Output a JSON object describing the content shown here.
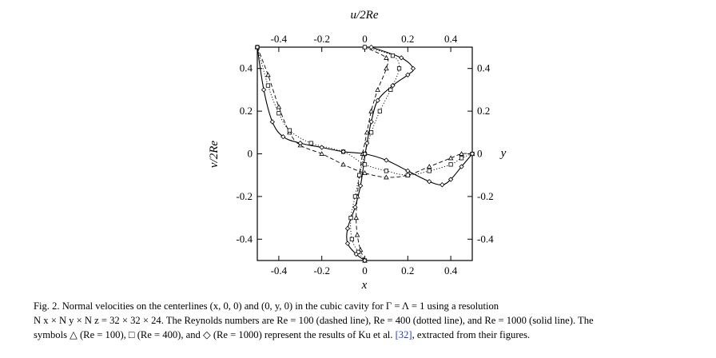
{
  "figure": {
    "chart_data": {
      "type": "line",
      "top_axis": {
        "label": "u/2Re",
        "ticks": [
          "-0.4",
          "-0.2",
          "0",
          "0.2",
          "0.4"
        ],
        "range": [
          -0.5,
          0.5
        ]
      },
      "bottom_axis": {
        "label": "x",
        "ticks": [
          "-0.4",
          "-0.2",
          "0",
          "0.2",
          "0.4"
        ],
        "range": [
          -0.5,
          0.5
        ]
      },
      "left_axis": {
        "label": "v/2Re",
        "ticks": [
          "0.4",
          "0.2",
          "0",
          "-0.2",
          "-0.4"
        ],
        "range": [
          -0.5,
          0.5
        ]
      },
      "right_axis": {
        "label": "y",
        "ticks": [
          "0.4",
          "0.2",
          "0",
          "-0.2",
          "-0.4"
        ],
        "range": [
          -0.5,
          0.5
        ]
      },
      "u_profiles": [
        {
          "style": "dashed",
          "marker": "triangle",
          "points": [
            [
              0,
              -0.5
            ],
            [
              -0.02,
              -0.45
            ],
            [
              -0.035,
              -0.38
            ],
            [
              -0.04,
              -0.3
            ],
            [
              -0.035,
              -0.2
            ],
            [
              -0.025,
              -0.1
            ],
            [
              -0.01,
              0
            ],
            [
              0.01,
              0.1
            ],
            [
              0.03,
              0.2
            ],
            [
              0.06,
              0.3
            ],
            [
              0.1,
              0.4
            ],
            [
              0.1,
              0.45
            ],
            [
              0,
              0.5
            ]
          ]
        },
        {
          "style": "dotted",
          "marker": "square",
          "points": [
            [
              0,
              -0.5
            ],
            [
              -0.03,
              -0.46
            ],
            [
              -0.06,
              -0.4
            ],
            [
              -0.065,
              -0.3
            ],
            [
              -0.045,
              -0.2
            ],
            [
              -0.025,
              -0.1
            ],
            [
              0,
              0
            ],
            [
              0.03,
              0.1
            ],
            [
              0.07,
              0.2
            ],
            [
              0.12,
              0.3
            ],
            [
              0.16,
              0.4
            ],
            [
              0.13,
              0.46
            ],
            [
              0,
              0.5
            ]
          ]
        },
        {
          "style": "solid",
          "marker": "diamond",
          "points": [
            [
              0,
              -0.5
            ],
            [
              -0.04,
              -0.47
            ],
            [
              -0.08,
              -0.42
            ],
            [
              -0.08,
              -0.35
            ],
            [
              -0.045,
              -0.25
            ],
            [
              -0.02,
              -0.15
            ],
            [
              -0.005,
              -0.05
            ],
            [
              0.01,
              0.05
            ],
            [
              0.03,
              0.15
            ],
            [
              0.06,
              0.25
            ],
            [
              0.13,
              0.32
            ],
            [
              0.2,
              0.37
            ],
            [
              0.225,
              0.4
            ],
            [
              0.17,
              0.45
            ],
            [
              0.03,
              0.5
            ]
          ]
        }
      ],
      "v_profiles": [
        {
          "style": "dashed",
          "marker": "triangle",
          "points": [
            [
              -0.5,
              0.5
            ],
            [
              -0.45,
              0.37
            ],
            [
              -0.4,
              0.22
            ],
            [
              -0.35,
              0.1
            ],
            [
              -0.3,
              0.04
            ],
            [
              -0.2,
              0
            ],
            [
              -0.1,
              -0.05
            ],
            [
              0,
              -0.09
            ],
            [
              0.1,
              -0.11
            ],
            [
              0.2,
              -0.1
            ],
            [
              0.3,
              -0.06
            ],
            [
              0.4,
              -0.02
            ],
            [
              0.45,
              0
            ],
            [
              0.5,
              0
            ]
          ]
        },
        {
          "style": "dotted",
          "marker": "square",
          "points": [
            [
              -0.5,
              0.5
            ],
            [
              -0.45,
              0.32
            ],
            [
              -0.4,
              0.19
            ],
            [
              -0.35,
              0.11
            ],
            [
              -0.25,
              0.05
            ],
            [
              -0.1,
              0.01
            ],
            [
              0,
              -0.05
            ],
            [
              0.1,
              -0.08
            ],
            [
              0.2,
              -0.1
            ],
            [
              0.3,
              -0.08
            ],
            [
              0.4,
              -0.05
            ],
            [
              0.45,
              -0.02
            ],
            [
              0.5,
              0
            ]
          ]
        },
        {
          "style": "solid",
          "marker": "diamond",
          "points": [
            [
              -0.5,
              0.5
            ],
            [
              -0.47,
              0.3
            ],
            [
              -0.43,
              0.15
            ],
            [
              -0.38,
              0.08
            ],
            [
              -0.3,
              0.05
            ],
            [
              -0.2,
              0.03
            ],
            [
              -0.1,
              0.01
            ],
            [
              0,
              0
            ],
            [
              0.1,
              -0.03
            ],
            [
              0.2,
              -0.08
            ],
            [
              0.3,
              -0.13
            ],
            [
              0.36,
              -0.145
            ],
            [
              0.4,
              -0.12
            ],
            [
              0.45,
              -0.06
            ],
            [
              0.5,
              0
            ]
          ]
        }
      ]
    }
  },
  "caption": {
    "line1": "Fig. 2. Normal velocities on the centerlines (x, 0, 0) and (0, y, 0) in the cubic cavity for Γ = Λ = 1 using a resolution",
    "line2": "N x × N y × N z = 32 × 32 × 24. The Reynolds numbers are Re = 100 (dashed line), Re = 400 (dotted line), and Re = 1000 (solid line). The",
    "line3_a": "symbols △ (Re = 100), □ (Re = 400), and ◇ (Re = 1000) represent the results of Ku et al.",
    "ref": "[32]",
    "line3_b": ", extracted from their figures."
  }
}
